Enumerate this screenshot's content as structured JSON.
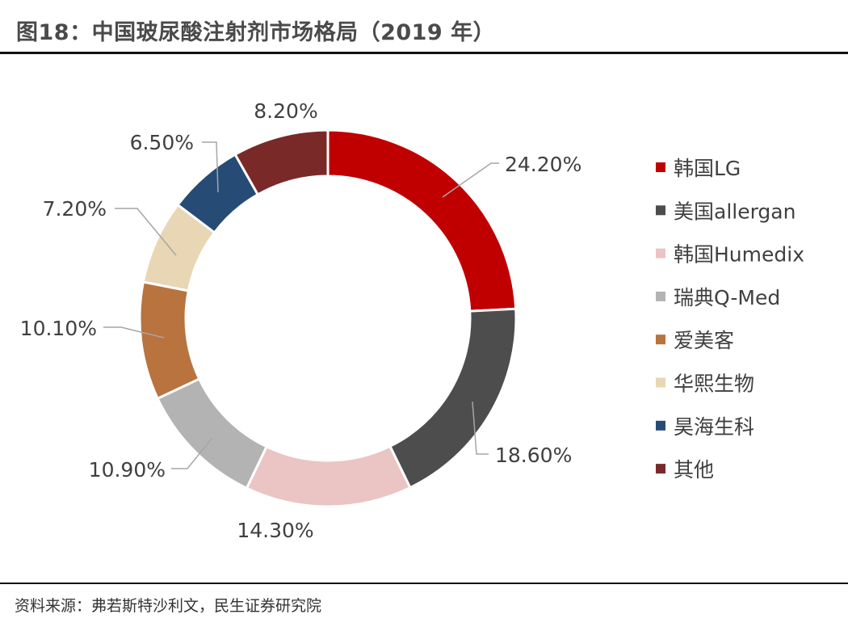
{
  "title": "图18：中国玻尿酸注射剂市场格局（2019 年）",
  "source": "资料来源：弗若斯特沙利文，民生证券研究院",
  "chart_data": {
    "type": "pie",
    "donut": true,
    "title": "图18：中国玻尿酸注射剂市场格局（2019 年）",
    "legend_position": "right",
    "categories": [
      "韩国LG",
      "美国allergan",
      "韩国Humedix",
      "瑞典Q-Med",
      "爱美客",
      "华熙生物",
      "昊海生科",
      "其他"
    ],
    "values": [
      24.2,
      18.6,
      14.3,
      10.9,
      10.1,
      7.2,
      6.5,
      8.2
    ],
    "labels": [
      "24.20%",
      "18.60%",
      "14.30%",
      "10.90%",
      "10.10%",
      "7.20%",
      "6.50%",
      "8.20%"
    ],
    "colors": [
      "#C00000",
      "#4D4D4D",
      "#EBC4C4",
      "#B3B3B3",
      "#B8733F",
      "#E9D6B5",
      "#264B75",
      "#7A2929"
    ]
  }
}
